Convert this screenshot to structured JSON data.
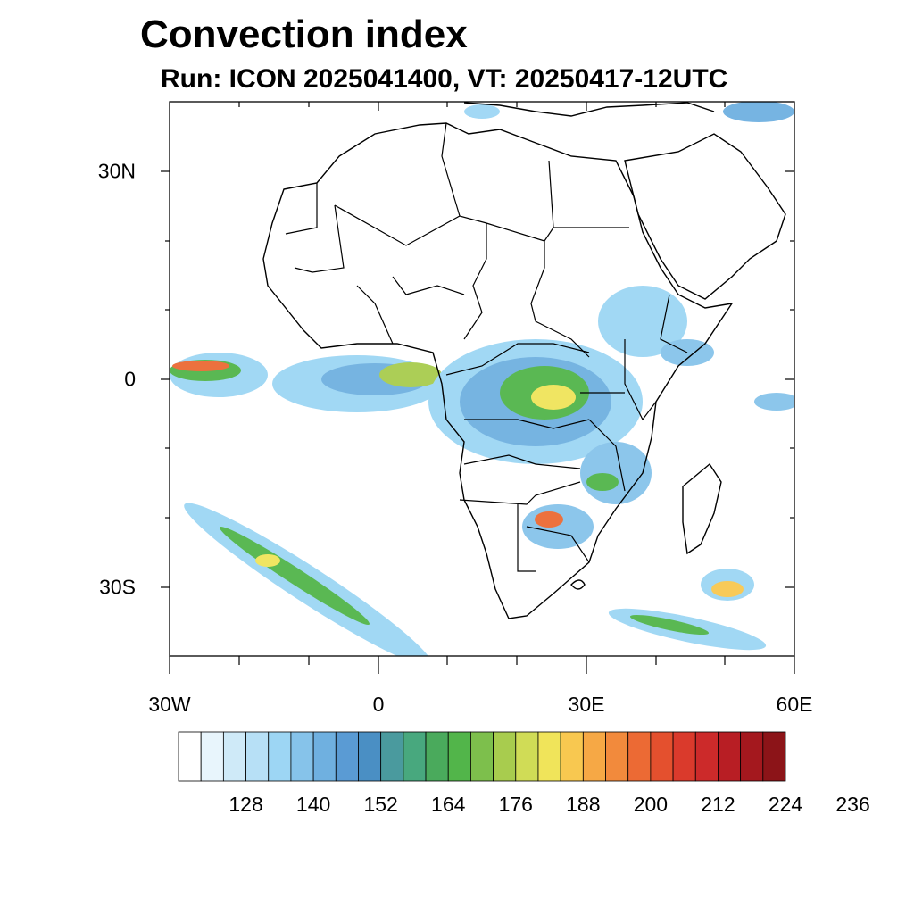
{
  "title": "Convection index",
  "subtitle": "Run: ICON 2025041400,  VT: 20250417-12UTC",
  "lat_labels": [
    "30N",
    "0",
    "30S"
  ],
  "lon_labels": [
    "30W",
    "0",
    "30E",
    "60E"
  ],
  "colorbar": {
    "labels": [
      "128",
      "140",
      "152",
      "164",
      "176",
      "188",
      "200",
      "212",
      "224",
      "236"
    ],
    "colors": [
      "#ffffff",
      "#e8f5fc",
      "#cfeaf8",
      "#b7e0f6",
      "#9dd6f4",
      "#86c3ea",
      "#6fb0e0",
      "#5a9bd4",
      "#4a8fc4",
      "#4a9a9e",
      "#48a87e",
      "#4aaa5c",
      "#52b54a",
      "#7dbf4c",
      "#a8cc4e",
      "#d0dc56",
      "#f0e45a",
      "#f8c850",
      "#f6a845",
      "#f28a3c",
      "#ec6a34",
      "#e4502e",
      "#da3a2c",
      "#cc2a2a",
      "#b81e24",
      "#a4181e",
      "#8c1418"
    ]
  },
  "map": {
    "lon_range": [
      -30,
      60
    ],
    "lat_range": [
      -40,
      40
    ]
  }
}
